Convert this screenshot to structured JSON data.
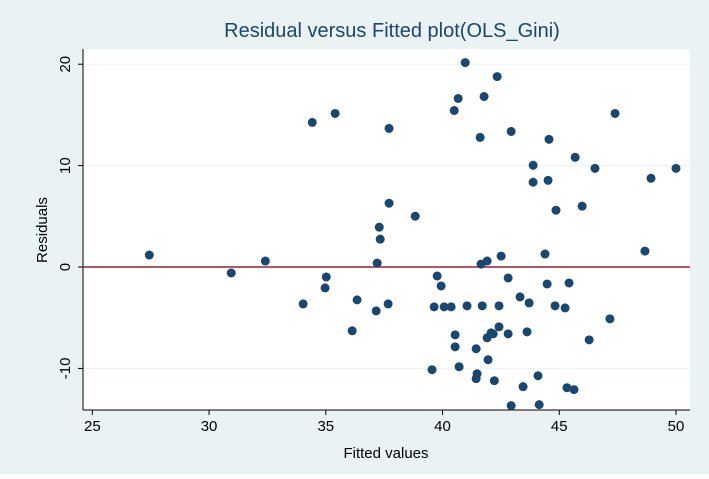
{
  "chart_data": {
    "type": "scatter",
    "title": "Residual versus Fitted plot(OLS_Gini)",
    "xlabel": "Fitted values",
    "ylabel": "Residuals",
    "xlim": [
      24.6,
      50.6
    ],
    "ylim": [
      -14.1,
      21.5
    ],
    "xticks": [
      25,
      30,
      35,
      40,
      45,
      50
    ],
    "yticks": [
      -10,
      0,
      10,
      20
    ],
    "refline": 0,
    "refline_color": "#a51d2d",
    "grid": true,
    "series": [
      {
        "color": "#1a476f",
        "x": [
          27.44,
          30.95,
          32.41,
          34.03,
          34.42,
          35.4,
          34.97,
          35.02,
          36.34,
          36.13,
          37.16,
          37.2,
          37.29,
          37.33,
          37.71,
          37.71,
          37.67,
          38.83,
          39.77,
          39.94,
          39.64,
          40.07,
          40.37,
          39.55,
          40.97,
          40.67,
          40.5,
          40.54,
          40.54,
          40.71,
          41.05,
          41.44,
          41.48,
          41.44,
          41.61,
          41.65,
          41.78,
          41.91,
          41.7,
          41.91,
          41.95,
          42.08,
          42.34,
          42.17,
          42.22,
          42.42,
          42.42,
          42.51,
          42.94,
          42.81,
          42.94,
          42.81,
          43.32,
          43.45,
          43.71,
          43.62,
          43.88,
          43.88,
          44.09,
          44.14,
          44.39,
          44.48,
          44.56,
          44.52,
          44.82,
          44.86,
          45.25,
          45.33,
          45.42,
          45.63,
          45.68,
          45.98,
          46.28,
          46.53,
          47.39,
          47.17,
          48.67,
          48.93,
          50.0
        ],
        "values": [
          1.18,
          -0.59,
          0.59,
          -3.64,
          14.26,
          15.14,
          -2.06,
          -0.98,
          -3.24,
          -6.29,
          -4.33,
          0.39,
          3.93,
          2.75,
          13.67,
          6.29,
          -3.64,
          5.01,
          -0.88,
          -1.87,
          -3.93,
          -3.93,
          -3.93,
          -10.13,
          20.16,
          16.62,
          15.44,
          -6.69,
          -7.87,
          -9.83,
          -3.83,
          -11.01,
          -10.52,
          -8.06,
          12.78,
          0.29,
          16.81,
          -6.98,
          -3.83,
          0.59,
          -9.14,
          -6.49,
          18.78,
          -6.59,
          -11.21,
          -5.9,
          -3.83,
          1.08,
          13.37,
          -1.08,
          -13.67,
          -6.59,
          -2.95,
          -11.8,
          -3.54,
          -6.39,
          10.03,
          8.36,
          -10.72,
          -13.57,
          1.28,
          -1.67,
          12.59,
          8.55,
          -3.83,
          5.6,
          -4.03,
          -11.9,
          -1.57,
          -12.09,
          10.82,
          6.0,
          -7.18,
          9.73,
          15.14,
          -5.11,
          1.57,
          8.75,
          9.73
        ]
      }
    ]
  }
}
